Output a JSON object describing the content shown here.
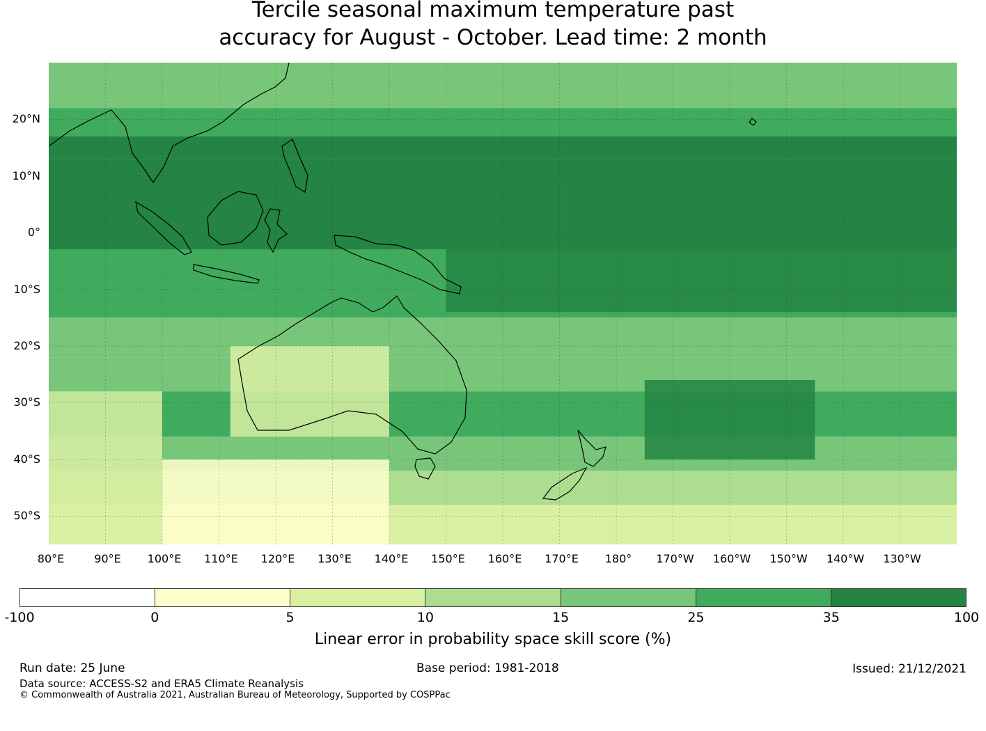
{
  "title": {
    "line1": "Tercile seasonal maximum temperature past",
    "line2": "accuracy for August - October. Lead time: 2 month"
  },
  "map": {
    "lat_labels": [
      "20°N",
      "10°N",
      "0°",
      "10°S",
      "20°S",
      "30°S",
      "40°S",
      "50°S"
    ],
    "lon_labels": [
      "80°E",
      "90°E",
      "100°E",
      "110°E",
      "120°E",
      "130°E",
      "140°E",
      "150°E",
      "160°E",
      "170°E",
      "180°",
      "170°W",
      "160°W",
      "150°W",
      "140°W",
      "130°W"
    ],
    "lat_range": [
      -55,
      30
    ],
    "lon_range": [
      80,
      240
    ],
    "gridlines": true
  },
  "colorbar": {
    "boundaries": [
      "-100",
      "0",
      "5",
      "10",
      "15",
      "25",
      "35",
      "100"
    ],
    "colors": [
      "#ffffff",
      "#ffffcc",
      "#d9f0a3",
      "#addd8e",
      "#78c679",
      "#41ab5d",
      "#238443"
    ],
    "label": "Linear error in probability space skill score (%)"
  },
  "footer": {
    "run_date": "Run date: 25 June",
    "base_period": "Base period: 1981-2018",
    "issued": "Issued: 21/12/2021",
    "data_source": "Data source: ACCESS-S2 and ERA5 Climate Reanalysis",
    "copyright": "© Commonwealth of Australia 2021, Australian Bureau of Meteorology, Supported by COSPPac"
  }
}
